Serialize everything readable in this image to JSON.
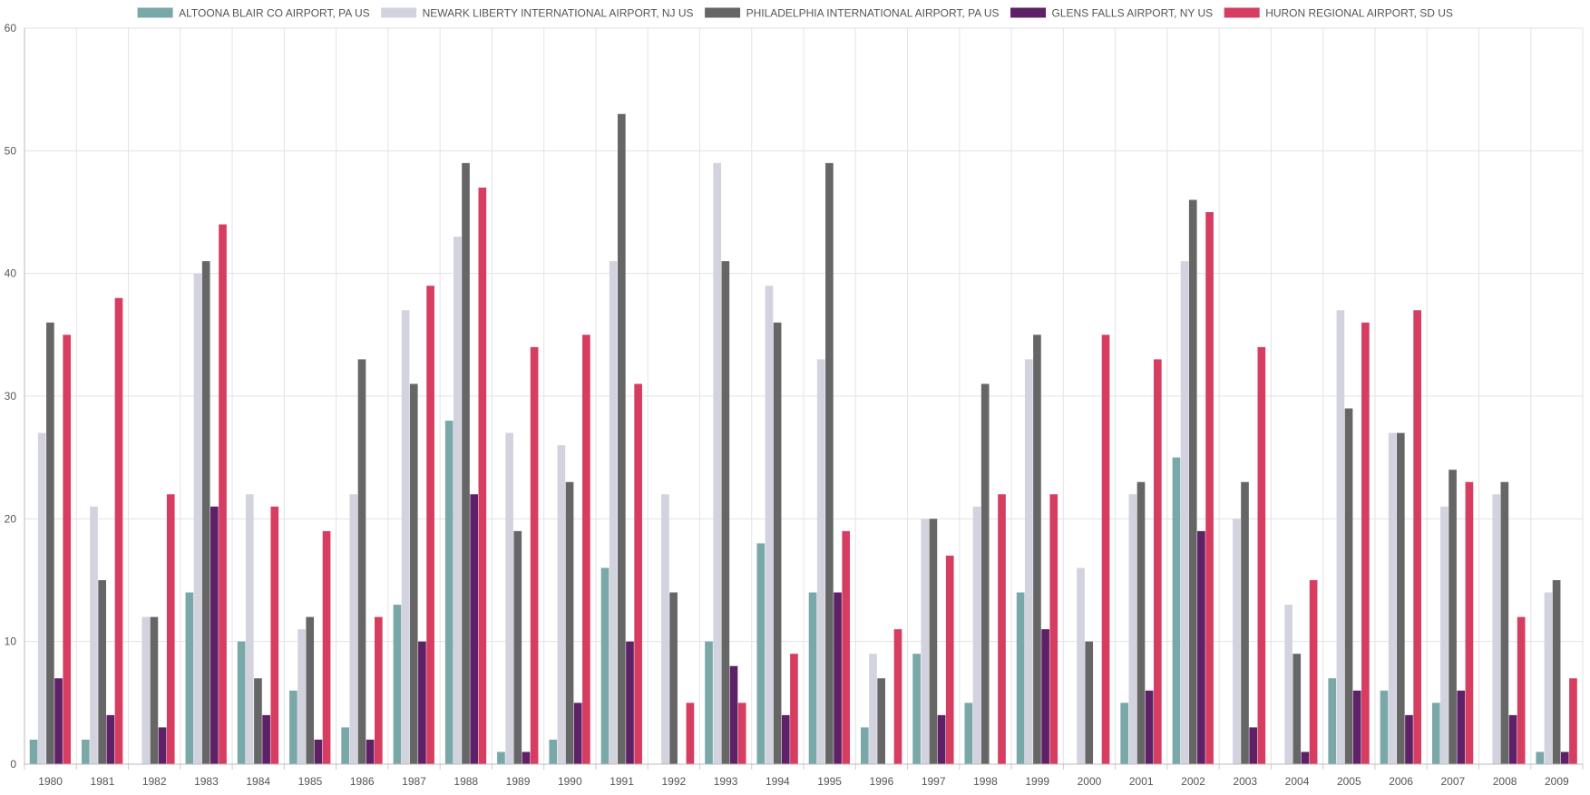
{
  "chart_data": {
    "type": "bar",
    "title": "",
    "xlabel": "",
    "ylabel": "",
    "ylim": [
      0,
      60
    ],
    "yticks": [
      0,
      10,
      20,
      30,
      40,
      50,
      60
    ],
    "grid": true,
    "legend_position": "top",
    "categories": [
      "1980",
      "1981",
      "1982",
      "1983",
      "1984",
      "1985",
      "1986",
      "1987",
      "1988",
      "1989",
      "1990",
      "1991",
      "1992",
      "1993",
      "1994",
      "1995",
      "1996",
      "1997",
      "1998",
      "1999",
      "2000",
      "2001",
      "2002",
      "2003",
      "2004",
      "2005",
      "2006",
      "2007",
      "2008",
      "2009"
    ],
    "series": [
      {
        "name": "ALTOONA BLAIR CO AIRPORT, PA US",
        "color": "#7aa8a8",
        "values": [
          2,
          2,
          0,
          14,
          10,
          6,
          3,
          13,
          28,
          1,
          2,
          16,
          0,
          10,
          18,
          14,
          3,
          9,
          5,
          14,
          0,
          5,
          25,
          0,
          0,
          7,
          6,
          5,
          0,
          1
        ]
      },
      {
        "name": "NEWARK LIBERTY INTERNATIONAL AIRPORT, NJ US",
        "color": "#d3d3df",
        "values": [
          27,
          21,
          12,
          40,
          22,
          11,
          22,
          37,
          43,
          27,
          26,
          41,
          22,
          49,
          39,
          33,
          9,
          20,
          21,
          33,
          16,
          22,
          41,
          20,
          13,
          37,
          27,
          21,
          22,
          14
        ]
      },
      {
        "name": "PHILADELPHIA INTERNATIONAL AIRPORT, PA US",
        "color": "#666666",
        "values": [
          36,
          15,
          12,
          41,
          7,
          12,
          33,
          31,
          49,
          19,
          23,
          53,
          14,
          41,
          36,
          49,
          7,
          20,
          31,
          35,
          10,
          23,
          46,
          23,
          9,
          29,
          27,
          24,
          23,
          15
        ]
      },
      {
        "name": "GLENS FALLS AIRPORT, NY US",
        "color": "#5e2066",
        "values": [
          7,
          4,
          3,
          21,
          4,
          2,
          2,
          10,
          22,
          1,
          5,
          10,
          0,
          8,
          4,
          14,
          0,
          4,
          0,
          11,
          0,
          6,
          19,
          3,
          1,
          6,
          4,
          6,
          4,
          1
        ]
      },
      {
        "name": "HURON REGIONAL AIRPORT, SD US",
        "color": "#d63d60",
        "values": [
          35,
          38,
          22,
          44,
          21,
          19,
          12,
          39,
          47,
          34,
          35,
          31,
          5,
          5,
          9,
          19,
          11,
          17,
          22,
          22,
          35,
          33,
          45,
          34,
          15,
          36,
          37,
          23,
          12,
          7
        ]
      }
    ]
  }
}
